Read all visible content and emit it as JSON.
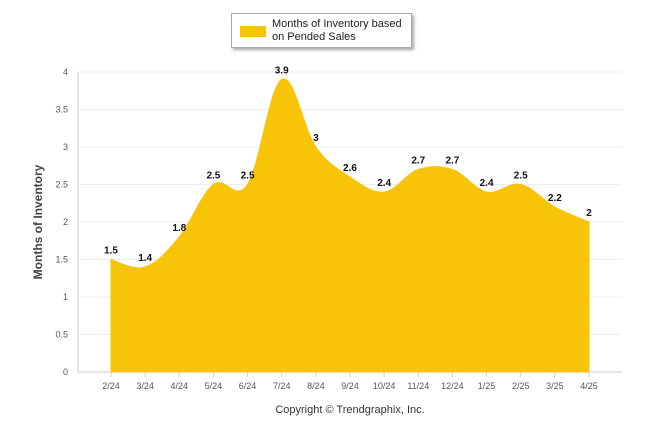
{
  "chart_data": {
    "type": "area",
    "categories": [
      "2/24",
      "3/24",
      "4/24",
      "5/24",
      "6/24",
      "7/24",
      "8/24",
      "9/24",
      "10/24",
      "11/24",
      "12/24",
      "1/25",
      "2/25",
      "3/25",
      "4/25"
    ],
    "series": [
      {
        "name": "Months of Inventory based on Pended Sales",
        "values": [
          1.5,
          1.4,
          1.8,
          2.5,
          2.5,
          3.9,
          3,
          2.6,
          2.4,
          2.7,
          2.7,
          2.4,
          2.5,
          2.2,
          2
        ],
        "color": "#F7C408"
      }
    ],
    "data_labels": [
      "1.5",
      "1.4",
      "1.8",
      "2.5",
      "2.5",
      "3.9",
      "3",
      "2.6",
      "2.4",
      "2.7",
      "2.7",
      "2.4",
      "2.5",
      "2.2",
      "2"
    ],
    "ylabel": "Months of Inventory",
    "xlabel": "",
    "ylim": [
      0,
      4
    ],
    "yticks": [
      "0",
      "0.5",
      "1",
      "1.5",
      "2",
      "2.5",
      "3",
      "3.5",
      "4"
    ],
    "grid": true,
    "legend_position": "top-center",
    "footer": "Copyright © Trendgraphix, Inc."
  }
}
